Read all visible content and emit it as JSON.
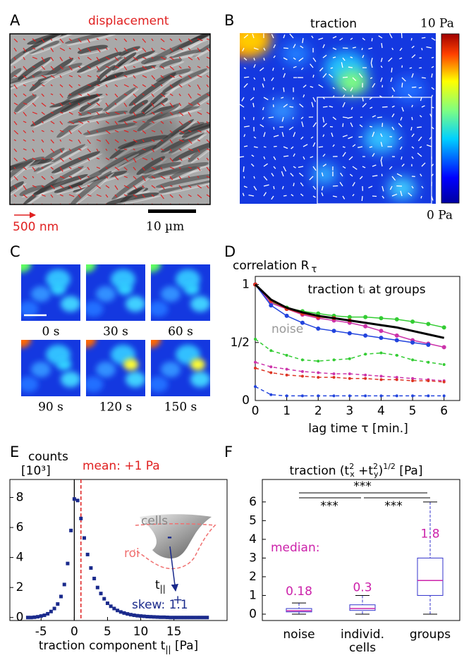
{
  "panels": {
    "A": {
      "label": "A",
      "title": "displacement",
      "arrow_scale": "500 nm",
      "scale_bar": "10 µm"
    },
    "B": {
      "label": "B",
      "title": "traction",
      "colorbar_max": "10 Pa",
      "colorbar_min": "0 Pa"
    },
    "C": {
      "label": "C",
      "frames": [
        "0 s",
        "30 s",
        "60 s",
        "90 s",
        "120 s",
        "150 s"
      ]
    }
  },
  "chart_data": [
    {
      "type": "line",
      "panel": "D",
      "title": "correlation R",
      "title_sub": "τ",
      "xlabel": "lag time τ [min.]",
      "annotations": [
        "traction tᵢ at groups",
        "noise"
      ],
      "x": [
        0,
        0.5,
        1,
        1.5,
        2,
        2.5,
        3,
        3.5,
        4,
        4.5,
        5,
        5.5,
        6
      ],
      "xlim": [
        0,
        6.5
      ],
      "ylim": [
        0,
        1.07
      ],
      "xticks": [
        0,
        1,
        2,
        3,
        4,
        5,
        6
      ],
      "yticks": [
        0,
        {
          "value": 0.5,
          "label": "1/2"
        },
        1
      ],
      "series": [
        {
          "color": "#33cc33",
          "dashed": false,
          "markers": true,
          "values": [
            1,
            0.85,
            0.8,
            0.77,
            0.75,
            0.73,
            0.72,
            0.72,
            0.71,
            0.7,
            0.68,
            0.66,
            0.63
          ]
        },
        {
          "color": "#cc33aa",
          "dashed": false,
          "markers": true,
          "values": [
            1,
            0.84,
            0.79,
            0.74,
            0.71,
            0.69,
            0.67,
            0.64,
            0.6,
            0.56,
            0.52,
            0.49,
            0.46
          ]
        },
        {
          "color": "#2244dd",
          "dashed": false,
          "markers": true,
          "values": [
            1,
            0.82,
            0.73,
            0.67,
            0.62,
            0.6,
            0.58,
            0.56,
            0.54,
            0.52,
            0.5,
            0.48,
            null
          ]
        },
        {
          "color": "#dd3322",
          "dashed": false,
          "markers": true,
          "values": [
            1,
            0.86,
            0.79,
            0.75,
            0.72,
            0.71,
            0.69,
            null,
            null,
            null,
            null,
            null,
            null
          ]
        },
        {
          "color": "#000000",
          "dashed": false,
          "markers": false,
          "linewidth": 3,
          "values": [
            1,
            0.87,
            0.8,
            0.76,
            0.73,
            0.71,
            0.69,
            0.67,
            0.65,
            0.63,
            0.6,
            0.57,
            0.54
          ]
        },
        {
          "color": "#33cc33",
          "dashed": true,
          "markers": true,
          "values": [
            0.53,
            0.43,
            0.39,
            0.35,
            0.34,
            0.35,
            0.36,
            0.4,
            0.41,
            0.39,
            0.35,
            0.33,
            0.31
          ]
        },
        {
          "color": "#cc33aa",
          "dashed": true,
          "markers": true,
          "values": [
            0.33,
            0.29,
            0.27,
            0.25,
            0.24,
            0.23,
            0.23,
            0.22,
            0.21,
            0.2,
            0.19,
            0.18,
            0.17
          ]
        },
        {
          "color": "#dd3322",
          "dashed": true,
          "markers": true,
          "values": [
            0.28,
            0.24,
            0.22,
            0.21,
            0.2,
            0.2,
            0.19,
            0.19,
            0.18,
            0.18,
            0.17,
            0.17,
            0.16
          ]
        },
        {
          "color": "#2244dd",
          "dashed": true,
          "markers": true,
          "values": [
            0.12,
            0.05,
            0.04,
            0.04,
            0.04,
            0.04,
            0.04,
            0.04,
            0.04,
            0.04,
            0.04,
            0.04,
            0.04
          ]
        }
      ]
    },
    {
      "type": "scatter",
      "panel": "E",
      "ylabel": "counts",
      "ylabel_unit": "[10³]",
      "xlabel": "traction component t",
      "xlabel_sub": "||",
      "xlabel_end": " [Pa]",
      "color": "#1a2a8c",
      "xlim": [
        -9.7,
        23
      ],
      "ylim": [
        -0.2,
        9.2
      ],
      "xticks": [
        -5,
        0,
        5,
        10,
        15
      ],
      "yticks": [
        0,
        2,
        4,
        6,
        8
      ],
      "mean": {
        "value": 1,
        "label": "mean: +1 Pa"
      },
      "inset": {
        "cells": "cells",
        "roi": "roi",
        "minus": "-",
        "plus": "+",
        "force": "t",
        "force_sub": "||"
      },
      "skew": "skew: 1.1",
      "x": [
        -7,
        -6.5,
        -6,
        -5.5,
        -5,
        -4.5,
        -4,
        -3.5,
        -3,
        -2.5,
        -2,
        -1.5,
        -1,
        -0.5,
        0,
        0.5,
        1,
        1.5,
        2,
        2.5,
        3,
        3.5,
        4,
        4.5,
        5,
        5.5,
        6,
        6.5,
        7,
        7.5,
        8,
        8.5,
        9,
        9.5,
        10,
        10.5,
        11,
        11.5,
        12,
        12.5,
        13,
        13.5,
        14,
        14.5,
        15,
        15.5,
        16,
        16.5,
        17,
        17.5,
        18,
        18.5,
        19,
        19.5,
        20
      ],
      "values": [
        0,
        0,
        0.02,
        0.05,
        0.1,
        0.15,
        0.25,
        0.4,
        0.6,
        0.9,
        1.4,
        2.2,
        3.6,
        5.8,
        7.9,
        7.8,
        6.6,
        5.3,
        4.2,
        3.3,
        2.6,
        2.0,
        1.6,
        1.25,
        0.95,
        0.75,
        0.6,
        0.47,
        0.37,
        0.3,
        0.24,
        0.19,
        0.15,
        0.12,
        0.1,
        0.08,
        0.06,
        0.05,
        0.04,
        0.03,
        0.02,
        0.02,
        0.01,
        0,
        0,
        0,
        0,
        0,
        0,
        0,
        0,
        0,
        0,
        0,
        0
      ]
    },
    {
      "type": "box",
      "panel": "F",
      "title": [
        "traction (t",
        "2",
        "x",
        " +t",
        "2",
        "y",
        ")",
        "1/2",
        " [Pa]"
      ],
      "categories": [
        "noise",
        [
          "individ.",
          "cells"
        ],
        "groups"
      ],
      "box_color": "#3333cc",
      "median_color": "#cc22aa",
      "median_label": "median:",
      "significance": [
        "***",
        "***",
        "***"
      ],
      "ylim": [
        -0.34,
        7.2
      ],
      "yticks": [
        0,
        1,
        2,
        3,
        4,
        5,
        6
      ],
      "boxes": [
        {
          "min": 0,
          "q1": 0.12,
          "median": 0.18,
          "q3": 0.3,
          "max": 0.6
        },
        {
          "min": 0,
          "q1": 0.2,
          "median": 0.3,
          "q3": 0.5,
          "max": 1.0
        },
        {
          "min": 0,
          "q1": 1.0,
          "median": 1.8,
          "q3": 3.0,
          "max": 6.0
        }
      ]
    }
  ]
}
